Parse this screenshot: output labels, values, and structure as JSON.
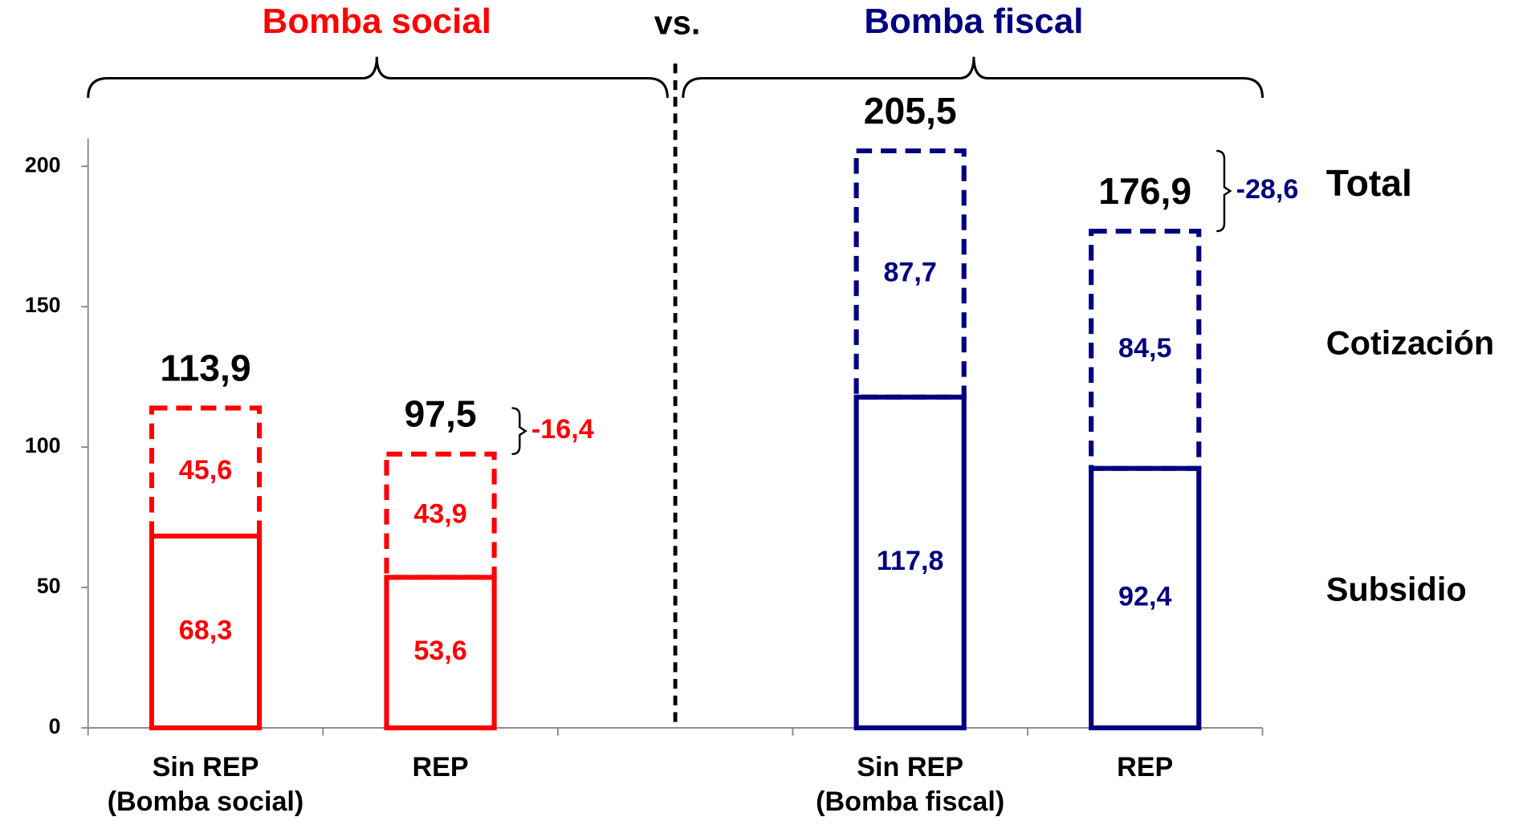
{
  "chart_data": {
    "type": "stacked_bar",
    "groups": [
      "Bomba social",
      "Bomba fiscal"
    ],
    "vs_label": "vs.",
    "categories": [
      "Sin REP\n(Bomba social)",
      "REP",
      null,
      "Sin REP\n(Bomba fiscal)",
      "REP"
    ],
    "colors": [
      "#ff0000",
      "#ff0000",
      null,
      "#000080",
      "#000080"
    ],
    "series": [
      {
        "name": "Subsidio",
        "values": [
          68.3,
          53.6,
          null,
          117.8,
          92.4
        ],
        "value_labels": [
          "68,3",
          "53,6",
          null,
          "117,8",
          "92,4"
        ]
      },
      {
        "name": "Cotización",
        "values": [
          45.6,
          43.9,
          null,
          87.7,
          84.5
        ],
        "value_labels": [
          "45,6",
          "43,9",
          null,
          "87,7",
          "84,5"
        ]
      }
    ],
    "totals": {
      "name": "Total",
      "values": [
        113.9,
        97.5,
        null,
        205.5,
        176.9
      ],
      "value_labels": [
        "113,9",
        "97,5",
        null,
        "205,5",
        "176,9"
      ]
    },
    "differences": {
      "values": [
        -16.4,
        -28.6
      ],
      "value_labels": [
        "-16,4",
        "-28,6"
      ]
    },
    "ylim": [
      0,
      210
    ],
    "yticks": [
      0,
      50,
      100,
      150,
      200
    ]
  }
}
